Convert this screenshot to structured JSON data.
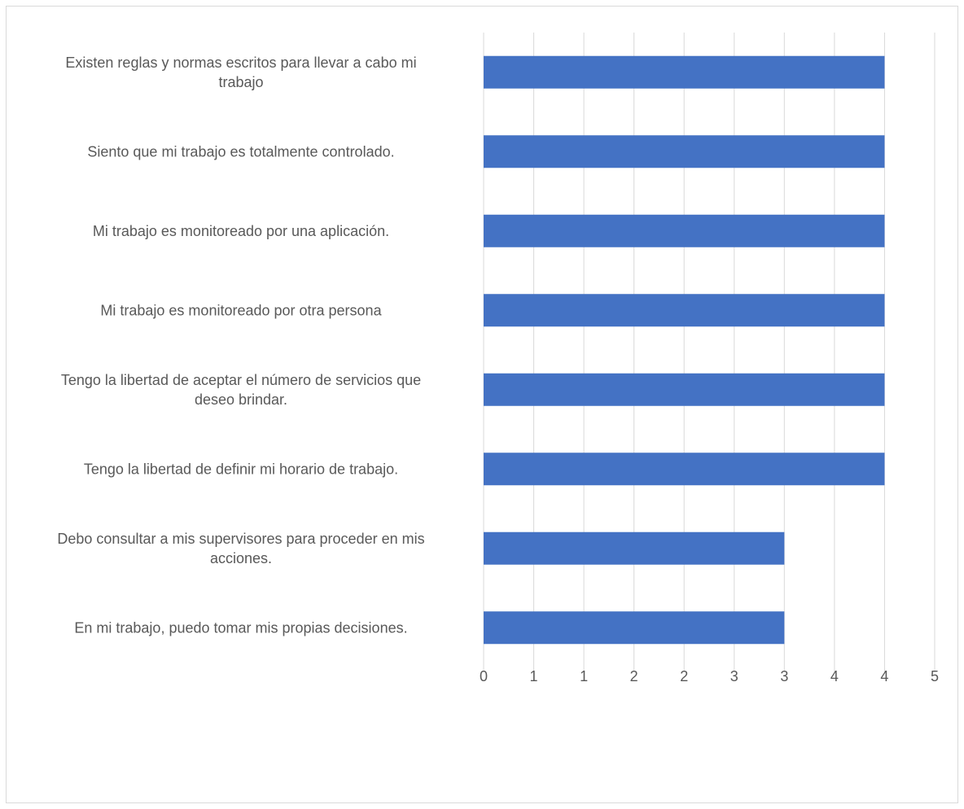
{
  "chart_data": {
    "type": "bar",
    "orientation": "horizontal",
    "title": "",
    "xlabel": "",
    "ylabel": "",
    "categories": [
      "Existen reglas y normas escritos para llevar a cabo mi trabajo",
      "Siento que mi trabajo es totalmente controlado.",
      "Mi trabajo es monitoreado por una aplicación.",
      "Mi trabajo es monitoreado por otra persona",
      "Tengo la libertad de aceptar el número de servicios que deseo brindar.",
      "Tengo la libertad de definir mi horario de trabajo.",
      "Debo consultar a mis supervisores para proceder en mis acciones.",
      "En mi trabajo, puedo tomar mis propias decisiones."
    ],
    "category_lines": [
      [
        "Existen reglas y normas escritos para llevar a cabo mi",
        "trabajo"
      ],
      [
        "Siento que mi trabajo es totalmente controlado."
      ],
      [
        "Mi trabajo es monitoreado por una aplicación."
      ],
      [
        "Mi trabajo es monitoreado por otra persona"
      ],
      [
        "Tengo la libertad de aceptar el número de servicios que",
        "deseo brindar."
      ],
      [
        "Tengo la libertad de definir mi horario de trabajo."
      ],
      [
        "Debo consultar a mis supervisores para proceder en mis",
        "acciones."
      ],
      [
        "En mi trabajo, puedo tomar mis propias decisiones."
      ]
    ],
    "values": [
      4,
      4,
      4,
      4,
      4,
      4,
      3,
      3
    ],
    "xlim": [
      0,
      4.5
    ],
    "tick_values": [
      0,
      0.5,
      1,
      1.5,
      2,
      2.5,
      3,
      3.5,
      4,
      4.5
    ],
    "tick_labels": [
      "0",
      "1",
      "1",
      "2",
      "2",
      "3",
      "3",
      "4",
      "4",
      "5"
    ],
    "grid": true,
    "legend": "none",
    "bar_color": "#4472c4",
    "grid_color": "#d9d9d9",
    "text_color": "#595959"
  }
}
